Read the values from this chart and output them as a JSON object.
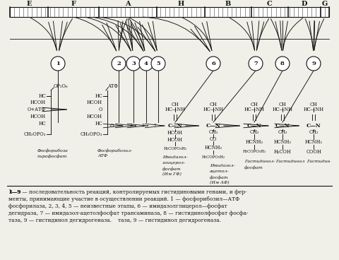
{
  "gene_labels": [
    "E",
    "F",
    "A",
    "H",
    "B",
    "C",
    "D",
    "G"
  ],
  "caption_line1": "1—9 — последовательность реакций, контролируемых гистидиновыми генами, и фер-",
  "caption_line2": "менты, принимающие участие в осуществлении реакций. 1 — фосфорибозил—АТФ",
  "caption_line3": "фосфорилаза, 2, 3, 4, 5 — неизвестные этапы, 6 — имидазолглицерол—фосфат",
  "caption_line4": "дегидраза, 7 — имидазол-ацетолфосфат трансаминаза, 8 — гистидинолфосфат фосфа-",
  "caption_line5": "таза, 9 — гистидинол дегидрогеназа.",
  "bg_color": "#f0efe8",
  "text_color": "#111111"
}
